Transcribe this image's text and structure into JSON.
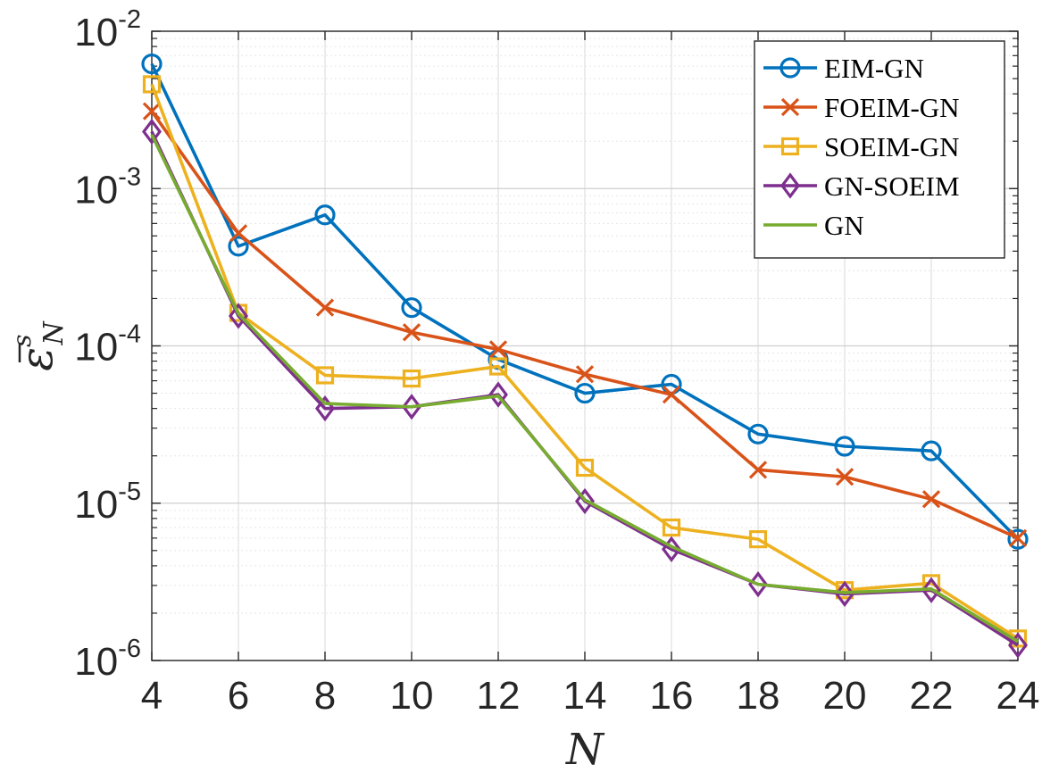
{
  "chart_data": {
    "type": "line",
    "title": "",
    "xlabel": "N",
    "ylabel": {
      "base": "ε",
      "superscript": "s",
      "subscript": "N",
      "overline": true
    },
    "xlim": [
      4,
      24
    ],
    "ylim": [
      1e-06,
      0.01
    ],
    "yscale": "log",
    "grid": true,
    "minor_grid": true,
    "legend_position": "top-right",
    "x": [
      4,
      6,
      8,
      10,
      12,
      14,
      16,
      18,
      20,
      22,
      24
    ],
    "x_ticks": [
      "4",
      "6",
      "8",
      "10",
      "12",
      "14",
      "16",
      "18",
      "20",
      "22",
      "24"
    ],
    "y_ticks": [
      {
        "value": 1e-06,
        "base": "10",
        "exp": "-6"
      },
      {
        "value": 1e-05,
        "base": "10",
        "exp": "-5"
      },
      {
        "value": 0.0001,
        "base": "10",
        "exp": "-4"
      },
      {
        "value": 0.001,
        "base": "10",
        "exp": "-3"
      },
      {
        "value": 0.01,
        "base": "10",
        "exp": "-2"
      }
    ],
    "series": [
      {
        "name": "EIM-GN",
        "color": "#0072BD",
        "marker": "circle",
        "values": [
          0.0062,
          0.00043,
          0.00068,
          0.000175,
          8.2e-05,
          5e-05,
          5.7e-05,
          2.75e-05,
          2.3e-05,
          2.15e-05,
          5.9e-06
        ]
      },
      {
        "name": "FOEIM-GN",
        "color": "#D95319",
        "marker": "x",
        "values": [
          0.0031,
          0.00052,
          0.000175,
          0.000122,
          9.5e-05,
          6.6e-05,
          4.9e-05,
          1.63e-05,
          1.47e-05,
          1.06e-05,
          6e-06
        ]
      },
      {
        "name": "SOEIM-GN",
        "color": "#EDB120",
        "marker": "square",
        "values": [
          0.0046,
          0.000162,
          6.5e-05,
          6.2e-05,
          7.4e-05,
          1.68e-05,
          7e-06,
          5.9e-06,
          2.8e-06,
          3.1e-06,
          1.38e-06
        ]
      },
      {
        "name": "GN-SOEIM",
        "color": "#7E2F8E",
        "marker": "diamond",
        "values": [
          0.0023,
          0.000155,
          4e-05,
          4.1e-05,
          4.9e-05,
          1.03e-05,
          5.1e-06,
          3.05e-06,
          2.65e-06,
          2.8e-06,
          1.25e-06
        ]
      },
      {
        "name": "GN",
        "color": "#77AC30",
        "marker": "none",
        "values": [
          0.0022,
          0.00016,
          4.3e-05,
          4.1e-05,
          4.8e-05,
          1.05e-05,
          5.3e-06,
          3.05e-06,
          2.7e-06,
          2.85e-06,
          1.32e-06
        ]
      }
    ]
  }
}
